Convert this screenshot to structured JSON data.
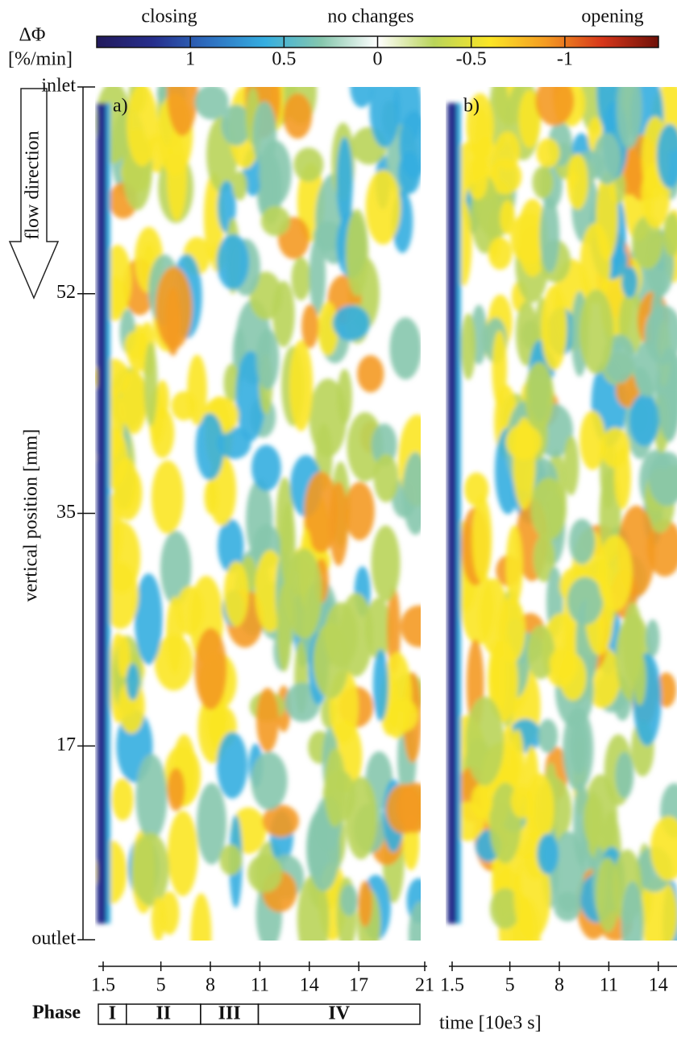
{
  "colorbar": {
    "symbol": "ΔΦ",
    "unit": "[%/min]",
    "annotations": [
      "closing",
      "no changes",
      "opening"
    ],
    "clim": [
      1.5,
      -1.5
    ],
    "ticks": [
      1,
      0.5,
      0,
      -0.5,
      -1
    ],
    "colors": [
      "#221a5c",
      "#262e8c",
      "#2e6fc0",
      "#35aee0",
      "#86c7ad",
      "#ffffff",
      "#b9d45a",
      "#fbe625",
      "#f49a22",
      "#d6361a",
      "#6e1008"
    ]
  },
  "chart_data": [
    {
      "type": "heatmap",
      "panel": "a)",
      "xlim": [
        1.5,
        21
      ],
      "xticks": [
        1.5,
        5,
        8,
        11,
        14,
        17,
        21
      ],
      "ylabel": "vertical position [mm]",
      "ylim": [
        2,
        68
      ],
      "yticks": [
        {
          "value": 68,
          "label": "inlet"
        },
        52,
        35,
        17,
        {
          "value": 2,
          "label": "outlet"
        }
      ]
    },
    {
      "type": "heatmap",
      "panel": "b)",
      "xlim": [
        1.5,
        15.1
      ],
      "xticks": [
        1.5,
        5,
        8,
        11,
        14
      ]
    }
  ],
  "flow_label": "flow direction",
  "xlabel": "time [10e3 s]",
  "phases": {
    "title": "Phase",
    "items": [
      {
        "label": "I",
        "start": 1.5,
        "end": 3.2
      },
      {
        "label": "II",
        "start": 3.2,
        "end": 7.7
      },
      {
        "label": "III",
        "start": 7.7,
        "end": 11.2
      },
      {
        "label": "IV",
        "start": 11.2,
        "end": 21
      }
    ]
  }
}
